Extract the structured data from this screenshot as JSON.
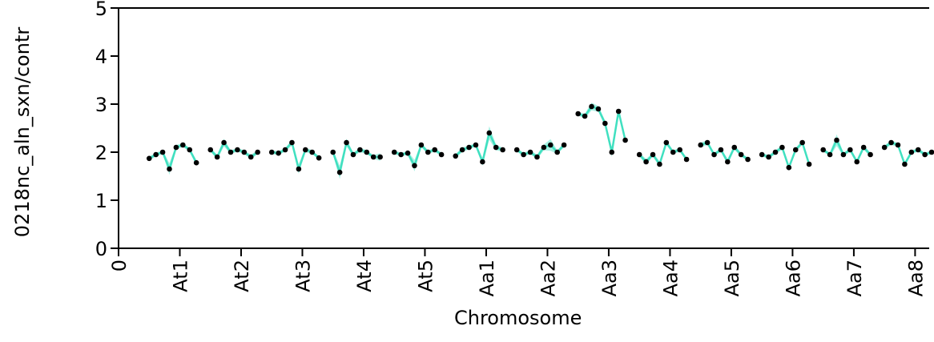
{
  "chart_data": {
    "type": "line",
    "y_label": "0218nc_aln_sxn/contr",
    "x_label": "Chromosome",
    "xlim": [
      0,
      13.23
    ],
    "ylim": [
      0,
      5
    ],
    "xticks": [
      0,
      {
        "value": 1,
        "label": "At1"
      },
      {
        "value": 2,
        "label": "At2"
      },
      {
        "value": 3,
        "label": "At3"
      },
      {
        "value": 4,
        "label": "At4"
      },
      {
        "value": 5,
        "label": "At5"
      },
      {
        "value": 6,
        "label": "Aa1"
      },
      {
        "value": 7,
        "label": "Aa2"
      },
      {
        "value": 8,
        "label": "Aa3"
      },
      {
        "value": 9,
        "label": "Aa4"
      },
      {
        "value": 10,
        "label": "Aa5"
      },
      {
        "value": 11,
        "label": "Aa6"
      },
      {
        "value": 12,
        "label": "Aa7"
      },
      {
        "value": 13,
        "label": "Aa8"
      }
    ],
    "yticks": [
      0,
      1,
      2,
      3,
      4,
      5
    ],
    "series": [
      {
        "color": "#40e0c0",
        "marker_color": "#000000",
        "x": [
          0.5,
          0.61,
          0.72,
          0.83,
          0.94,
          1.05,
          1.16,
          1.27,
          null,
          1.5,
          1.61,
          1.72,
          1.83,
          1.94,
          2.05,
          2.16,
          2.27,
          null,
          2.5,
          2.61,
          2.72,
          2.83,
          2.94,
          3.05,
          3.16,
          3.27,
          null,
          3.5,
          3.61,
          3.72,
          3.83,
          3.94,
          4.05,
          4.16,
          4.27,
          null,
          4.5,
          4.61,
          4.72,
          4.83,
          4.94,
          5.05,
          5.16,
          5.27,
          null,
          5.5,
          5.61,
          5.72,
          5.83,
          5.94,
          6.05,
          6.16,
          6.27,
          null,
          6.5,
          6.61,
          6.72,
          6.83,
          6.94,
          7.05,
          7.16,
          7.27,
          null,
          7.5,
          7.61,
          7.72,
          7.83,
          7.94,
          8.05,
          8.16,
          8.27,
          null,
          8.5,
          8.61,
          8.72,
          8.83,
          8.94,
          9.05,
          9.16,
          9.27,
          null,
          9.5,
          9.61,
          9.72,
          9.83,
          9.94,
          10.05,
          10.16,
          10.27,
          null,
          10.5,
          10.61,
          10.72,
          10.83,
          10.94,
          11.05,
          11.16,
          11.27,
          null,
          11.5,
          11.61,
          11.72,
          11.83,
          11.94,
          12.05,
          12.16,
          12.27,
          null,
          12.5,
          12.61,
          12.72,
          12.83,
          12.94,
          13.05,
          13.16,
          13.27
        ],
        "values": [
          1.87,
          1.95,
          2.0,
          1.65,
          2.1,
          2.15,
          2.05,
          1.78,
          null,
          2.05,
          1.9,
          2.2,
          2.0,
          2.05,
          2.0,
          1.9,
          2.0,
          null,
          2.0,
          1.98,
          2.05,
          2.2,
          1.65,
          2.05,
          2.0,
          1.88,
          null,
          2.0,
          1.58,
          2.2,
          1.95,
          2.05,
          2.0,
          1.9,
          1.9,
          null,
          2.0,
          1.95,
          1.98,
          1.72,
          2.15,
          2.0,
          2.05,
          1.95,
          null,
          1.92,
          2.05,
          2.1,
          2.15,
          1.8,
          2.4,
          2.1,
          2.05,
          null,
          2.05,
          1.95,
          2.0,
          1.9,
          2.1,
          2.15,
          2.0,
          2.15,
          null,
          2.8,
          2.75,
          2.95,
          2.9,
          2.6,
          2.0,
          2.85,
          2.25,
          null,
          1.95,
          1.8,
          1.95,
          1.75,
          2.2,
          2.0,
          2.05,
          1.85,
          null,
          2.15,
          2.2,
          1.95,
          2.05,
          1.8,
          2.1,
          1.95,
          1.85,
          null,
          1.95,
          1.9,
          2.0,
          2.1,
          1.68,
          2.05,
          2.2,
          1.75,
          null,
          2.05,
          1.95,
          2.25,
          1.95,
          2.05,
          1.8,
          2.1,
          1.95,
          null,
          2.1,
          2.2,
          2.15,
          1.75,
          2.0,
          2.05,
          1.95,
          2.0
        ],
        "errors": [
          0.04,
          0.04,
          0.04,
          0.12,
          0.05,
          0.04,
          0.04,
          0.06,
          null,
          0.04,
          0.05,
          0.08,
          0.04,
          0.04,
          0.04,
          0.05,
          0.04,
          null,
          0.04,
          0.04,
          0.04,
          0.06,
          0.1,
          0.05,
          0.04,
          0.04,
          null,
          0.05,
          0.14,
          0.08,
          0.04,
          0.05,
          0.04,
          0.04,
          0.08,
          null,
          0.04,
          0.04,
          0.04,
          0.12,
          0.05,
          0.04,
          0.04,
          0.04,
          null,
          0.04,
          0.05,
          0.04,
          0.04,
          0.08,
          0.14,
          0.06,
          0.04,
          null,
          0.04,
          0.04,
          0.04,
          0.05,
          0.06,
          0.12,
          0.04,
          0.05,
          null,
          0.04,
          0.05,
          0.08,
          0.06,
          0.06,
          0.1,
          0.06,
          0.06,
          null,
          0.04,
          0.06,
          0.04,
          0.06,
          0.05,
          0.04,
          0.04,
          0.04,
          null,
          0.05,
          0.05,
          0.04,
          0.04,
          0.06,
          0.05,
          0.04,
          0.04,
          null,
          0.04,
          0.04,
          0.04,
          0.05,
          0.06,
          0.04,
          0.05,
          0.06,
          null,
          0.04,
          0.04,
          0.12,
          0.04,
          0.04,
          0.05,
          0.05,
          0.04,
          null,
          0.04,
          0.05,
          0.04,
          0.05,
          0.04,
          0.04,
          0.04,
          0.04
        ]
      }
    ]
  }
}
